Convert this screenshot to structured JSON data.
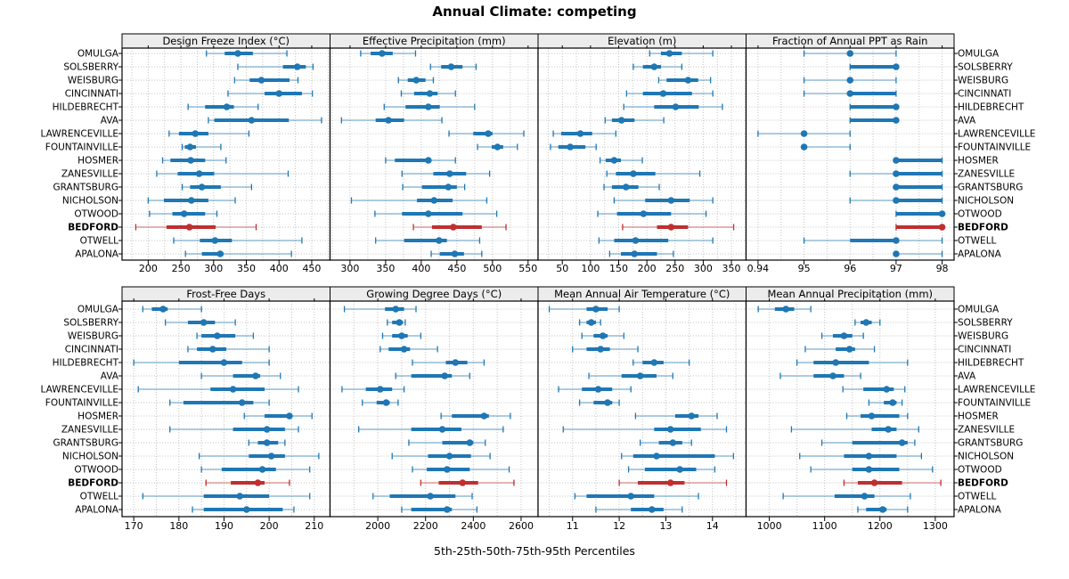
{
  "title": "Annual Climate: competing",
  "xlabel": "5th-25th-50th-75th-95th Percentiles",
  "locations": [
    "OMULGA",
    "SOLSBERRY",
    "WEISBURG",
    "CINCINNATI",
    "HILDEBRECHT",
    "AVA",
    "LAWRENCEVILLE",
    "FOUNTAINVILLE",
    "HOSMER",
    "ZANESVILLE",
    "GRANTSBURG",
    "NICHOLSON",
    "OTWOOD",
    "BEDFORD",
    "OTWELL",
    "APALONA"
  ],
  "highlighted_location": "BEDFORD",
  "percentile_keys": [
    "p5",
    "p25",
    "p50",
    "p75",
    "p95"
  ],
  "colors": {
    "series": "#1f77b4",
    "highlight": "#bf2f2f",
    "grid": "#c3c3c3",
    "strip_bg": "#ececec",
    "panel_border": "#000000",
    "text": "#000000"
  },
  "chart_data": [
    {
      "type": "dotplot-percentiles",
      "row": 0,
      "col": 0,
      "title": "Design Freeze Index (°C)",
      "xlim": [
        160,
        478
      ],
      "ticks": [
        200,
        250,
        300,
        350,
        400,
        450
      ],
      "values": [
        [
          289,
          317,
          337,
          360,
          412
        ],
        [
          337,
          406,
          428,
          441,
          452
        ],
        [
          332,
          355,
          373,
          416,
          429
        ],
        [
          322,
          378,
          400,
          435,
          451
        ],
        [
          261,
          287,
          320,
          331,
          368
        ],
        [
          292,
          301,
          358,
          415,
          465
        ],
        [
          232,
          247,
          272,
          292,
          354
        ],
        [
          252,
          256,
          264,
          273,
          311
        ],
        [
          222,
          234,
          265,
          287,
          319
        ],
        [
          213,
          245,
          278,
          301,
          414
        ],
        [
          252,
          264,
          282,
          311,
          358
        ],
        [
          200,
          224,
          266,
          292,
          333
        ],
        [
          202,
          237,
          255,
          287,
          305
        ],
        [
          181,
          228,
          263,
          303,
          365
        ],
        [
          239,
          279,
          302,
          328,
          435
        ],
        [
          257,
          282,
          310,
          315,
          419
        ]
      ]
    },
    {
      "type": "dotplot-percentiles",
      "row": 0,
      "col": 1,
      "title": "Effective Precipitation (mm)",
      "xlim": [
        272,
        564
      ],
      "ticks": [
        300,
        350,
        400,
        450,
        500,
        550
      ],
      "values": [
        [
          315,
          329,
          345,
          360,
          392
        ],
        [
          413,
          428,
          442,
          458,
          477
        ],
        [
          368,
          381,
          393,
          406,
          417
        ],
        [
          372,
          390,
          412,
          423,
          448
        ],
        [
          348,
          378,
          410,
          426,
          475
        ],
        [
          288,
          336,
          354,
          376,
          429
        ],
        [
          439,
          473,
          494,
          500,
          544
        ],
        [
          479,
          499,
          507,
          515,
          535
        ],
        [
          350,
          363,
          410,
          413,
          448
        ],
        [
          373,
          417,
          440,
          463,
          496
        ],
        [
          374,
          401,
          438,
          450,
          461
        ],
        [
          302,
          394,
          418,
          444,
          492
        ],
        [
          335,
          373,
          410,
          458,
          506
        ],
        [
          389,
          415,
          445,
          485,
          519
        ],
        [
          336,
          376,
          425,
          436,
          482
        ],
        [
          414,
          426,
          447,
          460,
          485
        ]
      ]
    },
    {
      "type": "dotplot-percentiles",
      "row": 0,
      "col": 2,
      "title": "Elevation (m)",
      "xlim": [
        7,
        376
      ],
      "ticks": [
        50,
        100,
        150,
        200,
        250,
        300,
        350
      ],
      "values": [
        [
          205,
          225,
          240,
          262,
          317
        ],
        [
          176,
          193,
          213,
          225,
          262
        ],
        [
          221,
          235,
          273,
          291,
          313
        ],
        [
          164,
          193,
          229,
          280,
          317
        ],
        [
          159,
          213,
          251,
          292,
          334
        ],
        [
          126,
          138,
          155,
          178,
          230
        ],
        [
          34,
          48,
          82,
          103,
          145
        ],
        [
          29,
          43,
          64,
          91,
          110
        ],
        [
          117,
          127,
          142,
          154,
          192
        ],
        [
          129,
          145,
          176,
          215,
          294
        ],
        [
          124,
          138,
          163,
          185,
          222
        ],
        [
          142,
          197,
          243,
          276,
          317
        ],
        [
          113,
          147,
          194,
          243,
          305
        ],
        [
          157,
          218,
          243,
          273,
          354
        ],
        [
          115,
          142,
          180,
          238,
          317
        ],
        [
          134,
          154,
          178,
          218,
          247
        ]
      ]
    },
    {
      "type": "dotplot-percentiles",
      "row": 0,
      "col": 3,
      "title": "Fraction of Annual PPT as Rain",
      "xlim": [
        0.9374,
        0.9826
      ],
      "ticks": [
        0.94,
        0.95,
        0.96,
        0.97,
        0.98
      ],
      "tick_labels": [
        "0.94",
        "95",
        "96",
        "97",
        "98"
      ],
      "values": [
        [
          0.95,
          0.96,
          0.96,
          0.96,
          0.97
        ],
        [
          0.96,
          0.96,
          0.97,
          0.97,
          0.97
        ],
        [
          0.95,
          0.96,
          0.96,
          0.96,
          0.97
        ],
        [
          0.95,
          0.96,
          0.96,
          0.97,
          0.97
        ],
        [
          0.96,
          0.96,
          0.97,
          0.97,
          0.97
        ],
        [
          0.96,
          0.96,
          0.97,
          0.97,
          0.97
        ],
        [
          0.94,
          0.95,
          0.95,
          0.95,
          0.96
        ],
        [
          0.95,
          0.95,
          0.95,
          0.95,
          0.96
        ],
        [
          0.97,
          0.97,
          0.97,
          0.98,
          0.98
        ],
        [
          0.96,
          0.97,
          0.97,
          0.98,
          0.98
        ],
        [
          0.97,
          0.97,
          0.97,
          0.98,
          0.98
        ],
        [
          0.96,
          0.97,
          0.97,
          0.98,
          0.98
        ],
        [
          0.97,
          0.97,
          0.98,
          0.98,
          0.98
        ],
        [
          0.97,
          0.97,
          0.98,
          0.98,
          0.98
        ],
        [
          0.95,
          0.96,
          0.97,
          0.97,
          0.98
        ],
        [
          0.97,
          0.97,
          0.97,
          0.97,
          0.98
        ]
      ]
    },
    {
      "type": "dotplot-percentiles",
      "row": 1,
      "col": 0,
      "title": "Frost-Free Days",
      "xlim": [
        167.4,
        213.5
      ],
      "ticks": [
        170,
        180,
        190,
        200,
        210
      ],
      "values": [
        [
          172,
          174,
          176.5,
          177.5,
          185
        ],
        [
          177,
          182,
          185.5,
          188,
          192.5
        ],
        [
          184,
          185,
          188.5,
          192.5,
          196.5
        ],
        [
          182,
          184,
          187.5,
          190.5,
          200
        ],
        [
          170,
          180,
          190,
          194,
          200
        ],
        [
          185,
          192,
          197,
          198,
          202.5
        ],
        [
          171,
          187,
          192,
          199,
          206.5
        ],
        [
          178,
          181,
          194,
          196.5,
          200
        ],
        [
          194.5,
          199,
          204.5,
          205,
          209.5
        ],
        [
          178,
          192,
          199.5,
          203.5,
          206.5
        ],
        [
          195.5,
          197.5,
          199.5,
          202,
          203.5
        ],
        [
          184.5,
          195.5,
          200.5,
          203.5,
          211
        ],
        [
          185,
          189.5,
          198.5,
          201.5,
          209
        ],
        [
          186,
          191.5,
          197.5,
          199,
          204.5
        ],
        [
          172,
          185.5,
          193.5,
          200,
          209
        ],
        [
          183,
          185.5,
          195,
          203,
          205.5
        ]
      ]
    },
    {
      "type": "dotplot-percentiles",
      "row": 1,
      "col": 1,
      "title": "Growing Degree Days (°C)",
      "xlim": [
        1800,
        2671
      ],
      "ticks": [
        2000,
        2200,
        2400,
        2600
      ],
      "values": [
        [
          1860,
          2030,
          2075,
          2110,
          2160
        ],
        [
          2040,
          2060,
          2090,
          2105,
          2115
        ],
        [
          2020,
          2060,
          2100,
          2125,
          2180
        ],
        [
          2010,
          2045,
          2110,
          2135,
          2250
        ],
        [
          2145,
          2285,
          2325,
          2375,
          2445
        ],
        [
          2075,
          2140,
          2280,
          2310,
          2385
        ],
        [
          1850,
          1950,
          2010,
          2060,
          2110
        ],
        [
          1935,
          1995,
          2035,
          2050,
          2085
        ],
        [
          2265,
          2310,
          2445,
          2465,
          2555
        ],
        [
          1920,
          2140,
          2270,
          2350,
          2525
        ],
        [
          2130,
          2270,
          2385,
          2400,
          2450
        ],
        [
          2060,
          2210,
          2300,
          2390,
          2470
        ],
        [
          2145,
          2205,
          2290,
          2385,
          2550
        ],
        [
          2180,
          2255,
          2355,
          2420,
          2570
        ],
        [
          1980,
          2050,
          2220,
          2325,
          2395
        ],
        [
          2100,
          2140,
          2290,
          2310,
          2415
        ]
      ]
    },
    {
      "type": "dotplot-percentiles",
      "row": 1,
      "col": 2,
      "title": "Mean Annual Air Temperature (°C)",
      "xlim": [
        10.26,
        14.72
      ],
      "ticks": [
        11,
        12,
        13,
        14
      ],
      "values": [
        [
          10.5,
          11.3,
          11.5,
          11.75,
          12.0
        ],
        [
          11.15,
          11.3,
          11.4,
          11.5,
          11.6
        ],
        [
          11.2,
          11.45,
          11.65,
          11.75,
          12.1
        ],
        [
          11.0,
          11.3,
          11.6,
          11.8,
          12.4
        ],
        [
          12.3,
          12.5,
          12.75,
          12.95,
          13.5
        ],
        [
          11.35,
          12.05,
          12.45,
          12.8,
          13.15
        ],
        [
          10.7,
          11.2,
          11.55,
          11.85,
          12.25
        ],
        [
          11.15,
          11.45,
          11.75,
          11.85,
          12.0
        ],
        [
          12.35,
          13.2,
          13.55,
          13.7,
          14.1
        ],
        [
          10.8,
          12.75,
          13.1,
          13.75,
          14.3
        ],
        [
          12.45,
          12.85,
          13.15,
          13.35,
          13.55
        ],
        [
          12.05,
          12.3,
          12.8,
          14.05,
          14.45
        ],
        [
          12.2,
          12.55,
          13.3,
          13.65,
          14.05
        ],
        [
          12.0,
          12.4,
          13.1,
          13.4,
          14.3
        ],
        [
          11.05,
          11.3,
          12.25,
          12.75,
          13.7
        ],
        [
          11.5,
          12.25,
          12.7,
          12.95,
          13.35
        ]
      ]
    },
    {
      "type": "dotplot-percentiles",
      "row": 1,
      "col": 3,
      "title": "Mean Annual Precipitation (mm)",
      "xlim": [
        958,
        1334
      ],
      "ticks": [
        1000,
        1100,
        1200,
        1300
      ],
      "values": [
        [
          980,
          1010,
          1030,
          1045,
          1075
        ],
        [
          1155,
          1165,
          1175,
          1185,
          1200
        ],
        [
          1095,
          1115,
          1135,
          1150,
          1170
        ],
        [
          1065,
          1120,
          1145,
          1155,
          1190
        ],
        [
          1050,
          1080,
          1120,
          1180,
          1250
        ],
        [
          1020,
          1080,
          1115,
          1135,
          1165
        ],
        [
          1133,
          1170,
          1212,
          1225,
          1245
        ],
        [
          1180,
          1207,
          1223,
          1230,
          1240
        ],
        [
          1140,
          1165,
          1185,
          1235,
          1250
        ],
        [
          1040,
          1185,
          1215,
          1230,
          1270
        ],
        [
          1095,
          1150,
          1240,
          1250,
          1263
        ],
        [
          1055,
          1135,
          1180,
          1230,
          1275
        ],
        [
          1075,
          1150,
          1180,
          1235,
          1295
        ],
        [
          1135,
          1160,
          1190,
          1240,
          1310
        ],
        [
          1025,
          1118,
          1172,
          1190,
          1255
        ],
        [
          1160,
          1175,
          1205,
          1212,
          1250
        ]
      ]
    }
  ]
}
